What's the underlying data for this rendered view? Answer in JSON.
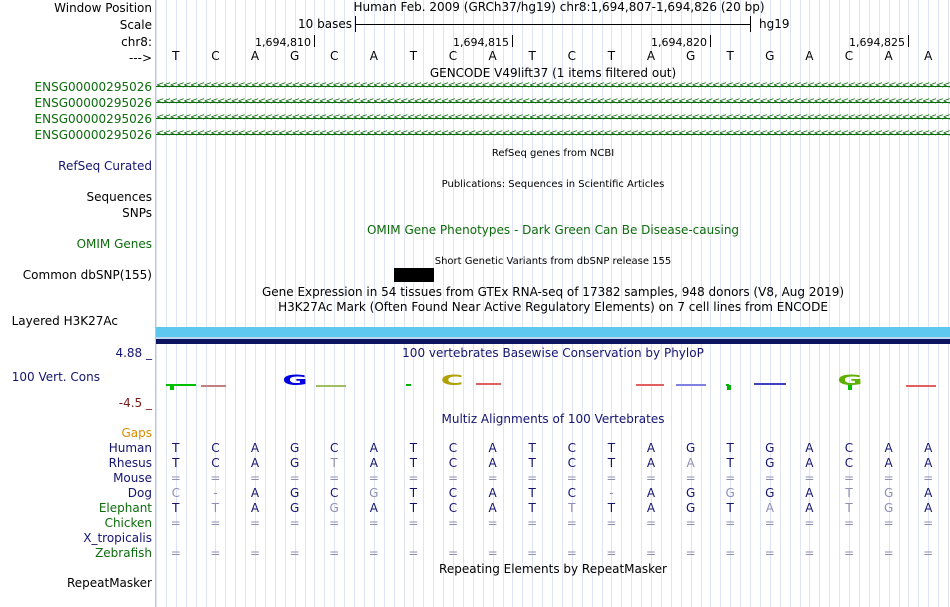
{
  "window": {
    "title": "Window Position"
  },
  "labels": {
    "window_position": "Window Position",
    "scale": "Scale",
    "chrom": "chr8:",
    "arrow": "--->",
    "ensg": [
      "ENSG00000295026",
      "ENSG00000295026",
      "ENSG00000295026",
      "ENSG00000295026"
    ],
    "refseq": "RefSeq Curated",
    "sequences": "Sequences",
    "snps": "SNPs",
    "omim": "OMIM Genes",
    "dbsnp": "Common dbSNP(155)",
    "h3k27": "Layered H3K27Ac",
    "cons_max": "4.88 _",
    "cons_name": "100 Vert. Cons",
    "cons_min": "-4.5 _",
    "gaps": "Gaps",
    "species": [
      "Human",
      "Rhesus",
      "Mouse",
      "Dog",
      "Elephant",
      "Chicken",
      "X_tropicalis",
      "Zebrafish"
    ],
    "repeatmasker": "RepeatMasker"
  },
  "header": {
    "assembly": "Human Feb. 2009 (GRCh37/hg19)   chr8:1,694,807-1,694,826 (20 bp)",
    "scale_text": "10 bases",
    "db": "hg19",
    "positions": [
      "1,694,810",
      "1,694,815",
      "1,694,820",
      "1,694,825"
    ]
  },
  "tracks": {
    "gencode_title": "GENCODE V49lift37 (1 items filtered out)",
    "refseq_title": "RefSeq genes from NCBI",
    "pubs_title": "Publications: Sequences in Scientific Articles",
    "omim_title": "OMIM Gene Phenotypes - Dark Green Can Be Disease-causing",
    "dbsnp_title": "Short Genetic Variants from dbSNP release 155",
    "gtex_title": "Gene Expression in 54 tissues from GTEx RNA-seq of 17382 samples, 948 donors (V8, Aug 2019)",
    "h3k27_title": "H3K27Ac Mark (Often Found Near Active Regulatory Elements) on 7 cell lines from ENCODE",
    "phylop_title": "100 vertebrates Basewise Conservation by PhyloP",
    "multiz_title": "Multiz Alignments of 100 Vertebrates",
    "repeat_title": "Repeating Elements by RepeatMasker"
  },
  "sequence": [
    "T",
    "C",
    "A",
    "G",
    "C",
    "A",
    "T",
    "C",
    "A",
    "T",
    "C",
    "T",
    "A",
    "G",
    "T",
    "G",
    "A",
    "C",
    "A",
    "A"
  ],
  "logo_letters": [
    "G",
    "C",
    "G"
  ],
  "alignments": {
    "Human": [
      "T",
      "C",
      "A",
      "G",
      "C",
      "A",
      "T",
      "C",
      "A",
      "T",
      "C",
      "T",
      "A",
      "G",
      "T",
      "G",
      "A",
      "C",
      "A",
      "A"
    ],
    "Rhesus": [
      "T",
      "C",
      "A",
      "G",
      "T",
      "A",
      "T",
      "C",
      "A",
      "T",
      "C",
      "T",
      "A",
      "A",
      "T",
      "G",
      "A",
      "C",
      "A",
      "A"
    ],
    "Mouse": [
      "=",
      "=",
      "=",
      "=",
      "=",
      "=",
      "=",
      "=",
      "=",
      "=",
      "=",
      "=",
      "=",
      "=",
      "=",
      "=",
      "=",
      "=",
      "=",
      "="
    ],
    "Dog": [
      "C",
      "-",
      "A",
      "G",
      "C",
      "G",
      "T",
      "C",
      "A",
      "T",
      "C",
      "-",
      "A",
      "G",
      "G",
      "G",
      "A",
      "T",
      "G",
      "A"
    ],
    "Elephant": [
      "T",
      "T",
      "A",
      "G",
      "G",
      "A",
      "T",
      "C",
      "A",
      "T",
      "T",
      "T",
      "A",
      "G",
      "T",
      "A",
      "A",
      "T",
      "G",
      "A"
    ],
    "Chicken": [
      "=",
      "=",
      "=",
      "=",
      "=",
      "=",
      "=",
      "=",
      "=",
      "=",
      "=",
      "=",
      "=",
      "=",
      "=",
      "=",
      "=",
      "=",
      "=",
      "="
    ],
    "X_tropicalis": [
      "",
      "",
      "",
      "",
      "",
      "",
      "",
      "",
      "",
      "",
      "",
      "",
      "",
      "",
      "",
      "",
      "",
      "",
      "",
      ""
    ],
    "Zebrafish": [
      "=",
      "=",
      "=",
      "=",
      "=",
      "=",
      "=",
      "=",
      "=",
      "=",
      "=",
      "=",
      "=",
      "=",
      "=",
      "=",
      "=",
      "=",
      "=",
      "="
    ]
  },
  "colors": {
    "gencode": "#0c6b0c",
    "refseq": "#141470",
    "omim": "#0c6b0c",
    "species": "#141470",
    "gaps": "#d98c00",
    "h3k27_light": "#5ec8ee",
    "h3k27_dark": "#0d1460",
    "cons_max": "#141470",
    "cons_min": "#7a1a1a",
    "diff_base": "#8f8fb4"
  }
}
